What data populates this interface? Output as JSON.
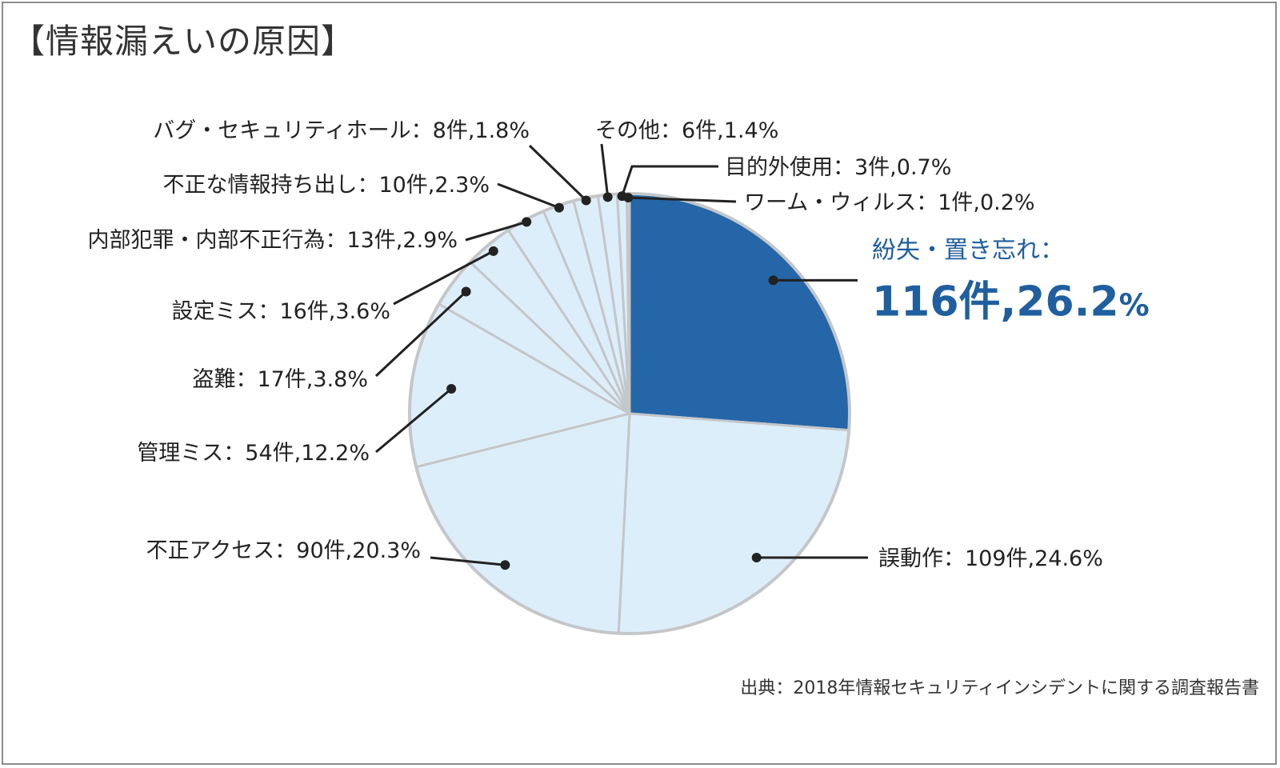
{
  "title": "【情報漏えいの原因】",
  "source": "出典：2018年情報セキュリティインシデントに関する調査報告書",
  "colors": {
    "highlight": "#2466a8",
    "slice": "#ddeefb",
    "border": "#c4c6c8",
    "leader": "#222222",
    "highlight_text": "#1f5fa0"
  },
  "chart_data": {
    "type": "pie",
    "start": "12 o'clock",
    "direction": "clockwise",
    "slices": [
      {
        "category": "紛失・置き忘れ",
        "count": "116件",
        "percent": 26.2,
        "label": "紛失・置き忘れ：",
        "value_text": "116件,26.2",
        "pct_sign": "%",
        "highlight": true
      },
      {
        "category": "誤動作",
        "count": "109件",
        "percent": 24.6,
        "label": "誤動作：109件,24.6%"
      },
      {
        "category": "不正アクセス",
        "count": "90件",
        "percent": 20.3,
        "label": "不正アクセス：90件,20.3%"
      },
      {
        "category": "管理ミス",
        "count": "54件",
        "percent": 12.2,
        "label": "管理ミス：54件,12.2%"
      },
      {
        "category": "盗難",
        "count": "17件",
        "percent": 3.8,
        "label": "盗難：17件,3.8%"
      },
      {
        "category": "設定ミス",
        "count": "16件",
        "percent": 3.6,
        "label": "設定ミス：16件,3.6%"
      },
      {
        "category": "内部犯罪・内部不正行為",
        "count": "13件",
        "percent": 2.9,
        "label": "内部犯罪・内部不正行為：13件,2.9%"
      },
      {
        "category": "不正な情報持ち出し",
        "count": "10件",
        "percent": 2.3,
        "label": "不正な情報持ち出し：10件,2.3%"
      },
      {
        "category": "バグ・セキュリティホール",
        "count": "8件",
        "percent": 1.8,
        "label": "バグ・セキュリティホール：8件,1.8%"
      },
      {
        "category": "その他",
        "count": "6件",
        "percent": 1.4,
        "label": "その他：6件,1.4%"
      },
      {
        "category": "目的外使用",
        "count": "3件",
        "percent": 0.7,
        "label": "目的外使用：3件,0.7%"
      },
      {
        "category": "ワーム・ウィルス",
        "count": "1件",
        "percent": 0.2,
        "label": "ワーム・ウィルス：1件,0.2%"
      }
    ]
  }
}
